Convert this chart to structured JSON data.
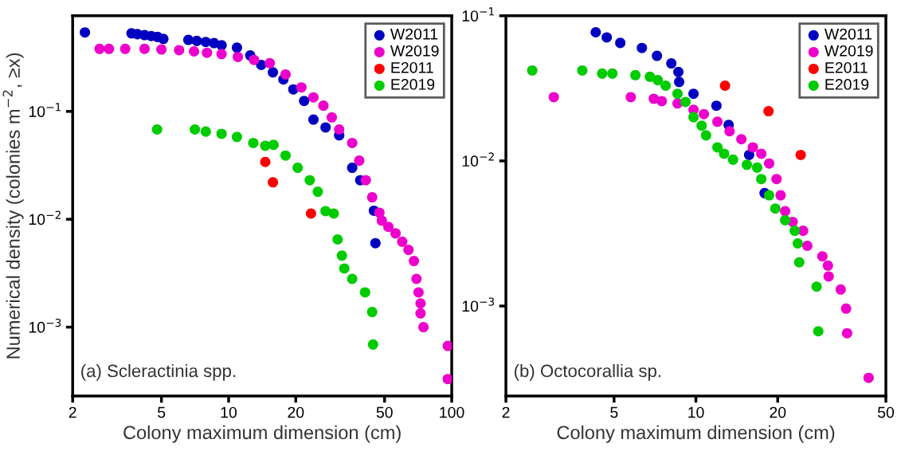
{
  "chart_data": [
    {
      "type": "scatter",
      "xlabel": "Colony maximum dimension (cm)",
      "ylabel": "Numerical density (colonies m$^{−2}$, ≥x)",
      "annotations": [
        "(a) Scleractinia spp."
      ],
      "log": "xy",
      "legend": "top right",
      "marker": "circle",
      "xlim": [
        2,
        100
      ],
      "ylim": [
        0.00023,
        0.77
      ],
      "xticks": [
        2,
        5,
        10,
        20,
        50,
        100
      ],
      "yticks": [
        {
          "value": 0.1,
          "label": "10$^{−1}$"
        },
        {
          "value": 0.01,
          "label": "10$^{−2}$"
        },
        {
          "value": 0.001,
          "label": "10$^{−3}$"
        }
      ],
      "series": [
        {
          "name": "W2011",
          "color": "#0000c0",
          "x": [
            2.27,
            3.67,
            3.9,
            4.2,
            4.5,
            4.8,
            5.1,
            6.6,
            7.2,
            7.9,
            8.6,
            9.3,
            10.9,
            12.5,
            14.0,
            15.8,
            17.6,
            19.5,
            21.8,
            24.0,
            27.2,
            31.3,
            35.8,
            38.9,
            44.8,
            45.5
          ],
          "values": [
            0.54,
            0.53,
            0.52,
            0.51,
            0.5,
            0.49,
            0.47,
            0.46,
            0.45,
            0.44,
            0.43,
            0.41,
            0.39,
            0.33,
            0.27,
            0.23,
            0.198,
            0.16,
            0.125,
            0.084,
            0.071,
            0.06,
            0.03,
            0.023,
            0.012,
            0.006
          ]
        },
        {
          "name": "W2019",
          "color": "#ee00cc",
          "x": [
            2.64,
            2.91,
            3.44,
            4.2,
            5,
            6,
            7,
            8,
            9.3,
            11,
            13,
            15.3,
            18,
            21.2,
            24,
            26.6,
            29,
            31.3,
            35.8,
            38.5,
            41.2,
            44,
            47.4,
            48.6,
            52,
            56,
            60,
            64,
            67.7,
            69.5,
            71,
            72.5,
            72.5,
            74.7,
            96,
            96
          ],
          "values": [
            0.38,
            0.38,
            0.38,
            0.38,
            0.375,
            0.37,
            0.36,
            0.35,
            0.34,
            0.32,
            0.3,
            0.28,
            0.22,
            0.167,
            0.135,
            0.113,
            0.088,
            0.068,
            0.051,
            0.035,
            0.023,
            0.016,
            0.0115,
            0.0097,
            0.0085,
            0.0074,
            0.0062,
            0.0052,
            0.0041,
            0.0028,
            0.0021,
            0.00166,
            0.00134,
            0.001,
            0.00067,
            0.00033
          ]
        },
        {
          "name": "E2011",
          "color": "#ff0000",
          "x": [
            14.6,
            15.8,
            23.4
          ],
          "values": [
            0.034,
            0.022,
            0.0113
          ]
        },
        {
          "name": "E2019",
          "color": "#00cc00",
          "x": [
            4.78,
            7.06,
            7.9,
            9.3,
            10.9,
            12.9,
            14.6,
            15.9,
            18.0,
            20.4,
            23.1,
            25.1,
            27.2,
            29.6,
            30.8,
            32.2,
            33,
            35.8,
            40.9,
            44.0,
            44.4
          ],
          "values": [
            0.068,
            0.068,
            0.065,
            0.062,
            0.058,
            0.051,
            0.048,
            0.049,
            0.039,
            0.03,
            0.023,
            0.018,
            0.0119,
            0.0113,
            0.0065,
            0.0046,
            0.0035,
            0.0028,
            0.0021,
            0.00138,
            0.00069
          ]
        }
      ]
    },
    {
      "type": "scatter",
      "xlabel": "Colony maximum dimension (cm)",
      "annotations": [
        "(b) Octocorallia sp."
      ],
      "log": "xy",
      "legend": "top right",
      "marker": "circle",
      "xlim": [
        2,
        50
      ],
      "ylim": [
        0.00024,
        0.1
      ],
      "xticks": [
        2,
        5,
        10,
        20,
        50
      ],
      "yticks": [
        {
          "value": 0.1,
          "label": "10$^{−1}$"
        },
        {
          "value": 0.01,
          "label": "10$^{−2}$"
        },
        {
          "value": 0.001,
          "label": "10$^{−3}$"
        }
      ],
      "series": [
        {
          "name": "W2011",
          "color": "#0000c0",
          "x": [
            4.28,
            4.7,
            5.27,
            6.33,
            7.19,
            8.12,
            8.62,
            8.68,
            9.8,
            11.9,
            13.2,
            15.7,
            17.9
          ],
          "values": [
            0.077,
            0.071,
            0.065,
            0.06,
            0.053,
            0.047,
            0.041,
            0.035,
            0.029,
            0.024,
            0.0177,
            0.011,
            0.006
          ]
        },
        {
          "name": "W2019",
          "color": "#ee00cc",
          "x": [
            3.0,
            5.76,
            7.0,
            7.49,
            8.56,
            9.8,
            10.7,
            12.0,
            13.3,
            14.7,
            16.2,
            17.4,
            18.6,
            19.8,
            20.5,
            21.3,
            22.7,
            24.8,
            25.7,
            29.2,
            30.6,
            30.8,
            34.1,
            35.7,
            36.0,
            43.2
          ],
          "values": [
            0.0275,
            0.0275,
            0.0268,
            0.0258,
            0.0249,
            0.0225,
            0.021,
            0.0186,
            0.016,
            0.0141,
            0.0124,
            0.0112,
            0.0096,
            0.0075,
            0.0058,
            0.0045,
            0.0038,
            0.0033,
            0.0026,
            0.0022,
            0.0019,
            0.0016,
            0.0013,
            0.00096,
            0.00065,
            0.00032
          ]
        },
        {
          "name": "E2011",
          "color": "#ff0000",
          "x": [
            12.8,
            18.5,
            24.3
          ],
          "values": [
            0.033,
            0.022,
            0.011
          ]
        },
        {
          "name": "E2019",
          "color": "#00cc00",
          "x": [
            2.5,
            3.82,
            4.52,
            4.93,
            5.99,
            6.77,
            7.24,
            7.74,
            8.56,
            9.16,
            9.8,
            10.5,
            10.9,
            12.0,
            12.7,
            13.7,
            15.4,
            16.8,
            17.4,
            18.6,
            19.6,
            21.3,
            23.1,
            23.7,
            24.0,
            27.8,
            28.2
          ],
          "values": [
            0.042,
            0.042,
            0.04,
            0.04,
            0.039,
            0.038,
            0.036,
            0.033,
            0.029,
            0.0255,
            0.02,
            0.0175,
            0.015,
            0.0124,
            0.0112,
            0.0102,
            0.0094,
            0.009,
            0.0075,
            0.0058,
            0.0047,
            0.0039,
            0.0033,
            0.0027,
            0.002,
            0.00136,
            0.00067
          ]
        }
      ]
    }
  ]
}
